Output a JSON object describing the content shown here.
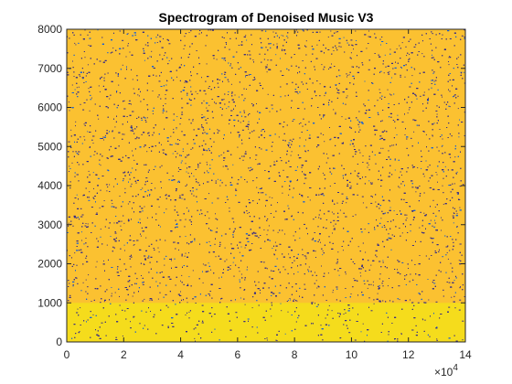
{
  "chart_data": {
    "type": "heatmap",
    "title": "Spectrogram of Denoised Music V3",
    "xlabel": "",
    "ylabel": "",
    "x_exponent_label": {
      "base": "×10",
      "exp": "4"
    },
    "xlim": [
      0,
      140000
    ],
    "ylim": [
      0,
      8000
    ],
    "x_ticks": [
      0,
      20000,
      40000,
      60000,
      80000,
      100000,
      120000,
      140000
    ],
    "x_tick_labels": [
      "0",
      "2",
      "4",
      "6",
      "8",
      "10",
      "12",
      "14"
    ],
    "y_ticks": [
      0,
      1000,
      2000,
      3000,
      4000,
      5000,
      6000,
      7000,
      8000
    ],
    "y_tick_labels": [
      "0",
      "1000",
      "2000",
      "3000",
      "4000",
      "5000",
      "6000",
      "7000",
      "8000"
    ],
    "colormap": "parula",
    "colors": {
      "background": "#fbc131",
      "low_band": "#f5dc1c",
      "speckle_dark": "#352a87",
      "speckle_mid": "#0f5cdd",
      "axis": "#262626"
    },
    "regions": [
      {
        "freq_range": [
          0,
          1000
        ],
        "level": "high"
      },
      {
        "freq_range": [
          1000,
          8000
        ],
        "level": "moderate"
      }
    ],
    "grid": false,
    "legend": "none"
  }
}
